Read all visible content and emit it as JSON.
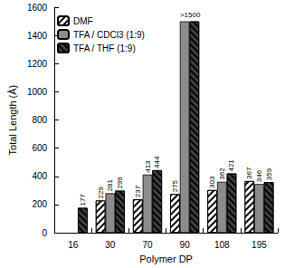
{
  "chart_data": {
    "type": "bar",
    "x_label": "Polymer DP",
    "y_label": "Total Length (Å)",
    "categories": [
      "16",
      "30",
      "70",
      "90",
      "108",
      "195"
    ],
    "series": [
      {
        "name": "DMF",
        "color": "#ffffff",
        "values": [
          null,
          229,
          237,
          275,
          303,
          367
        ]
      },
      {
        "name": "TFA / CDCl3 (1:9)",
        "color": "#8c8c8c",
        "values": [
          null,
          281,
          413,
          1500,
          362,
          346
        ],
        "value_labels": [
          null,
          "281",
          "413",
          ">1500",
          "362",
          "346"
        ]
      },
      {
        "name": "TFA / THF (1:9)",
        "color": "#404040",
        "values": [
          177,
          299,
          444,
          1500,
          421,
          359
        ],
        "value_labels": [
          "177",
          "299",
          "444",
          null,
          "421",
          "359"
        ]
      }
    ],
    "ylim": [
      0,
      1600
    ],
    "yticks": [
      0,
      200,
      400,
      600,
      800,
      1000,
      1200,
      1400,
      1600
    ],
    "grid": false,
    "legend": "upper left",
    "data_labels": true
  }
}
